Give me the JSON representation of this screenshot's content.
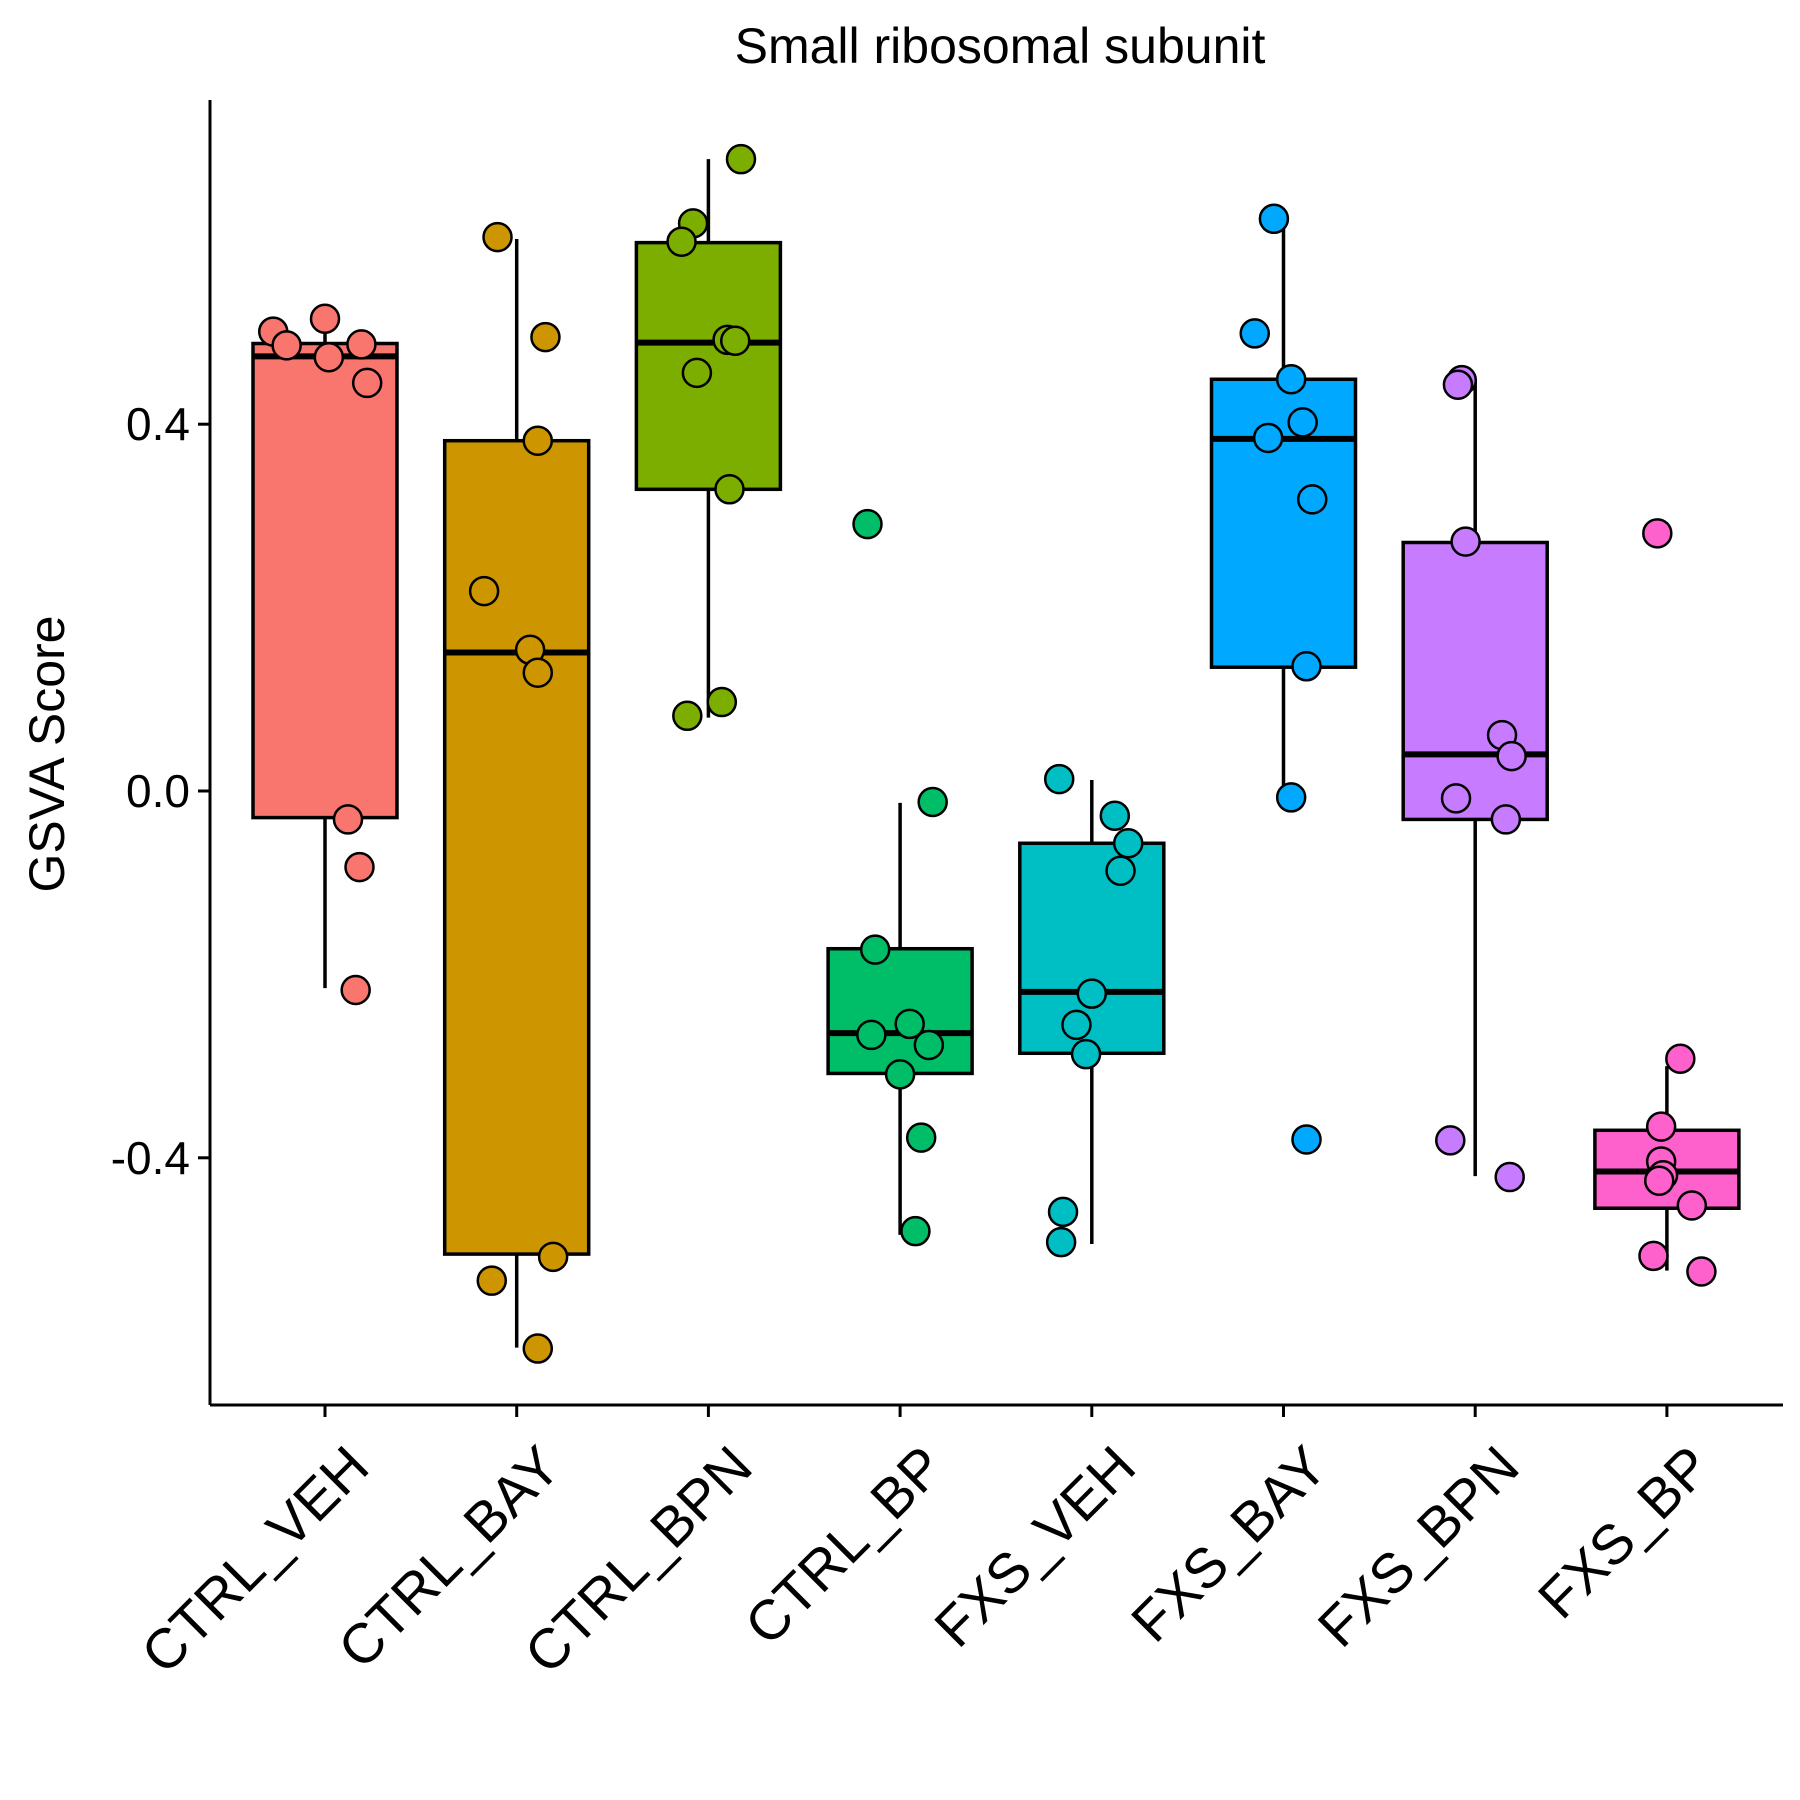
{
  "chart_data": {
    "type": "boxplot",
    "title": "Small ribosomal subunit",
    "xlabel": "",
    "ylabel": "GSVA Score",
    "ylim": [
      -0.67,
      0.75
    ],
    "yticks": [
      {
        "value": 0.4,
        "label": "0.4"
      },
      {
        "value": 0.0,
        "label": "0.0"
      },
      {
        "value": -0.4,
        "label": "-0.4"
      }
    ],
    "grid": false,
    "legend": "none",
    "categories": [
      "CTRL_VEH",
      "CTRL_BAY",
      "CTRL_BPN",
      "CTRL_BP",
      "FXS_VEH",
      "FXS_BAY",
      "FXS_BPN",
      "FXS_BP"
    ],
    "colors": [
      "#F8766D",
      "#CD9600",
      "#7CAE00",
      "#00BE67",
      "#00BFC4",
      "#00A9FF",
      "#C77CFF",
      "#FF61CC"
    ],
    "boxes": [
      {
        "q1": -0.029,
        "median": 0.474,
        "q3": 0.488,
        "whisker_low": -0.215,
        "whisker_high": 0.505
      },
      {
        "q1": -0.505,
        "median": 0.151,
        "q3": 0.382,
        "whisker_low": -0.607,
        "whisker_high": 0.602
      },
      {
        "q1": 0.329,
        "median": 0.489,
        "q3": 0.598,
        "whisker_low": 0.08,
        "whisker_high": 0.689
      },
      {
        "q1": -0.308,
        "median": -0.264,
        "q3": -0.172,
        "whisker_low": -0.484,
        "whisker_high": -0.013
      },
      {
        "q1": -0.286,
        "median": -0.219,
        "q3": -0.057,
        "whisker_low": -0.494,
        "whisker_high": 0.012
      },
      {
        "q1": 0.135,
        "median": 0.384,
        "q3": 0.449,
        "whisker_low": -0.007,
        "whisker_high": 0.623
      },
      {
        "q1": -0.031,
        "median": 0.04,
        "q3": 0.271,
        "whisker_low": -0.42,
        "whisker_high": 0.449
      },
      {
        "q1": -0.455,
        "median": -0.415,
        "q3": -0.37,
        "whisker_low": -0.523,
        "whisker_high": -0.3
      }
    ],
    "points": [
      {
        "group": 0,
        "jitter": [
          -0.27,
          -0.2,
          0.0,
          0.02,
          0.19,
          0.22,
          0.12,
          0.18,
          0.16
        ],
        "y": [
          0.501,
          0.486,
          0.515,
          0.473,
          0.487,
          0.445,
          -0.031,
          -0.083,
          -0.217
        ]
      },
      {
        "group": 1,
        "jitter": [
          -0.1,
          0.15,
          0.11,
          -0.17,
          0.07,
          0.11,
          -0.13,
          0.19,
          0.11
        ],
        "y": [
          0.604,
          0.495,
          0.382,
          0.218,
          0.154,
          0.129,
          -0.534,
          -0.508,
          -0.608
        ]
      },
      {
        "group": 2,
        "jitter": [
          0.17,
          -0.08,
          -0.14,
          0.1,
          0.14,
          -0.06,
          0.11,
          0.07,
          -0.11
        ],
        "y": [
          0.689,
          0.619,
          0.599,
          0.492,
          0.491,
          0.456,
          0.329,
          0.097,
          0.082
        ]
      },
      {
        "group": 3,
        "jitter": [
          -0.17,
          0.17,
          -0.13,
          -0.15,
          0.05,
          0.15,
          0.0,
          0.11,
          0.08
        ],
        "y": [
          0.291,
          -0.012,
          -0.173,
          -0.266,
          -0.254,
          -0.277,
          -0.309,
          -0.378,
          -0.48
        ]
      },
      {
        "group": 4,
        "jitter": [
          -0.17,
          0.12,
          0.19,
          0.15,
          0.0,
          -0.08,
          -0.03,
          -0.15,
          -0.16
        ],
        "y": [
          0.013,
          -0.027,
          -0.057,
          -0.087,
          -0.221,
          -0.255,
          -0.287,
          -0.459,
          -0.492
        ]
      },
      {
        "group": 5,
        "jitter": [
          -0.05,
          -0.15,
          0.04,
          0.1,
          -0.08,
          0.15,
          0.12,
          0.04,
          0.12
        ],
        "y": [
          0.624,
          0.499,
          0.449,
          0.402,
          0.385,
          0.318,
          0.136,
          -0.007,
          -0.38
        ]
      },
      {
        "group": 6,
        "jitter": [
          -0.07,
          -0.09,
          -0.05,
          0.14,
          0.19,
          -0.1,
          0.16,
          -0.13,
          0.18
        ],
        "y": [
          0.448,
          0.443,
          0.272,
          0.061,
          0.038,
          -0.008,
          -0.031,
          -0.381,
          -0.421
        ]
      },
      {
        "group": 7,
        "jitter": [
          -0.05,
          0.07,
          -0.03,
          -0.03,
          -0.02,
          -0.04,
          0.13,
          -0.07,
          0.18
        ],
        "y": [
          0.281,
          -0.292,
          -0.366,
          -0.404,
          -0.419,
          -0.425,
          -0.452,
          -0.507,
          -0.524
        ]
      }
    ]
  }
}
